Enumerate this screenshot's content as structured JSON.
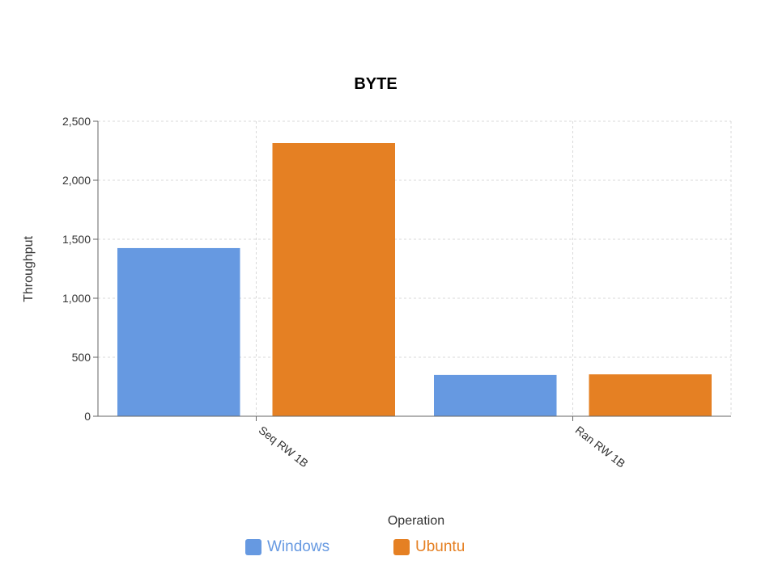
{
  "chart_data": {
    "type": "bar",
    "title": "BYTE",
    "xlabel": "Operation",
    "ylabel": "Throughput",
    "categories": [
      "Seq RW 1B",
      "Ran RW 1B"
    ],
    "ylim": [
      0,
      2500
    ],
    "yticks": [
      0,
      500,
      1000,
      1500,
      2000,
      2500
    ],
    "ytick_labels": [
      "0",
      "500",
      "1,000",
      "1,500",
      "2,000",
      "2,500"
    ],
    "grid": true,
    "legend_position": "bottom",
    "series": [
      {
        "name": "Windows",
        "color": "#6699e1",
        "values": [
          1425,
          350
        ]
      },
      {
        "name": "Ubuntu",
        "color": "#e58023",
        "values": [
          2315,
          355
        ]
      }
    ]
  }
}
